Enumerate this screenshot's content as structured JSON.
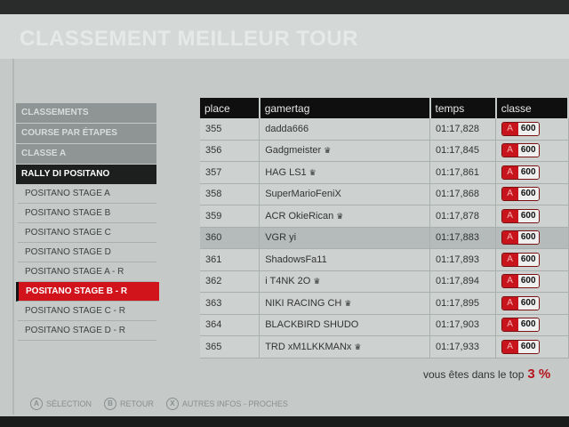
{
  "title": "CLASSEMENT MEILLEUR TOUR",
  "menu": {
    "breadcrumbs": [
      "CLASSEMENTS",
      "COURSE PAR ÉTAPES",
      "CLASSE A",
      "RALLY DI POSITANO"
    ],
    "stages": [
      "POSITANO STAGE A",
      "POSITANO STAGE B",
      "POSITANO STAGE C",
      "POSITANO STAGE D",
      "POSITANO STAGE A - R",
      "POSITANO STAGE B - R",
      "POSITANO STAGE C - R",
      "POSITANO STAGE D - R"
    ],
    "selected_stage": "POSITANO STAGE B - R"
  },
  "table": {
    "headers": [
      "place",
      "gamertag",
      "temps",
      "classe"
    ],
    "highlighted_place": "360",
    "rows": [
      {
        "place": "355",
        "gamertag": "dadda666",
        "crown": false,
        "temps": "01:17,828",
        "class": "A",
        "pi": "600"
      },
      {
        "place": "356",
        "gamertag": "Gadgmeister",
        "crown": true,
        "temps": "01:17,845",
        "class": "A",
        "pi": "600"
      },
      {
        "place": "357",
        "gamertag": "HAG LS1",
        "crown": true,
        "temps": "01:17,861",
        "class": "A",
        "pi": "600"
      },
      {
        "place": "358",
        "gamertag": "SuperMarioFeniX",
        "crown": false,
        "temps": "01:17,868",
        "class": "A",
        "pi": "600"
      },
      {
        "place": "359",
        "gamertag": "ACR OkieRican",
        "crown": true,
        "temps": "01:17,878",
        "class": "A",
        "pi": "600"
      },
      {
        "place": "360",
        "gamertag": "VGR yi",
        "crown": false,
        "temps": "01:17,883",
        "class": "A",
        "pi": "600"
      },
      {
        "place": "361",
        "gamertag": "ShadowsFa11",
        "crown": false,
        "temps": "01:17,893",
        "class": "A",
        "pi": "600"
      },
      {
        "place": "362",
        "gamertag": "i T4NK 2O",
        "crown": true,
        "temps": "01:17,894",
        "class": "A",
        "pi": "600"
      },
      {
        "place": "363",
        "gamertag": "NIKI RACING CH",
        "crown": true,
        "temps": "01:17,895",
        "class": "A",
        "pi": "600"
      },
      {
        "place": "364",
        "gamertag": "BLACKBIRD SHUDO",
        "crown": false,
        "temps": "01:17,903",
        "class": "A",
        "pi": "600"
      },
      {
        "place": "365",
        "gamertag": "TRD xM1LKKMANx",
        "crown": true,
        "temps": "01:17,933",
        "class": "A",
        "pi": "600"
      }
    ]
  },
  "top": {
    "label": "vous êtes dans le top",
    "value": "3 %"
  },
  "hints": [
    {
      "button": "A",
      "label": "SÉLECTION"
    },
    {
      "button": "B",
      "label": "RETOUR"
    },
    {
      "button": "X",
      "label": "AUTRES INFOS - PROCHES"
    }
  ],
  "colors": {
    "accent": "#d1141c",
    "header": "#0f0f0f",
    "background": "#c5c9c8"
  },
  "icons": {
    "crown": "crown-icon"
  }
}
